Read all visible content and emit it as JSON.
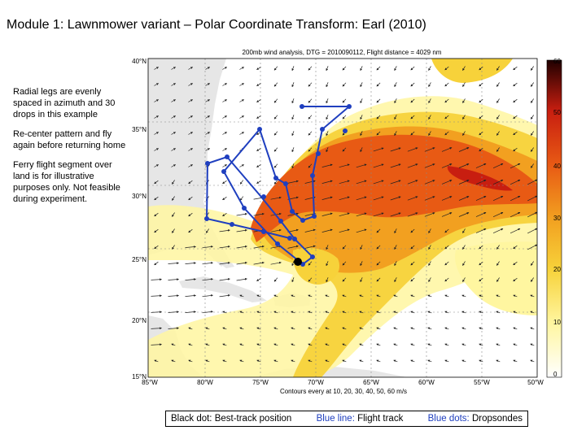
{
  "slide": {
    "title": "Module 1:  Lawnmower variant – Polar Coordinate Transform: Earl (2010)",
    "notes": [
      "Radial legs are evenly spaced in azimuth and 30 drops in this example",
      "Re-center pattern and fly again before returning home",
      "Ferry flight segment over land is for illustrative purposes only.  Not feasible during experiment."
    ]
  },
  "map": {
    "header": "200mb wind analysis, DTG = 2010090112, Flight distance = 4029 nm",
    "footer": "Contours every at 10, 20, 30, 40, 50, 60 m/s",
    "lon_labels": [
      "85°W",
      "80°W",
      "75°W",
      "70°W",
      "65°W",
      "60°W",
      "55°W",
      "50°W"
    ],
    "lat_labels": [
      "40°N",
      "35°N",
      "30°N",
      "25°N",
      "20°N",
      "15°N"
    ],
    "colorbar_labels": [
      "60",
      "50",
      "40",
      "30",
      "20",
      "10",
      "0"
    ],
    "colors": {
      "land": "#e6e6e6",
      "level1": "#fff6a0",
      "level2": "#f7d23a",
      "level3": "#f2a020",
      "level4": "#e85a14",
      "level5": "#c81e10",
      "track": "#1f3fbf",
      "storm": "#000000"
    }
  },
  "legend": {
    "storm": "Black dot: Best-track position",
    "track_label": "Blue line:",
    "track_text": " Flight track",
    "drops_label": "Blue dots:",
    "drops_text": " Dropsondes"
  }
}
